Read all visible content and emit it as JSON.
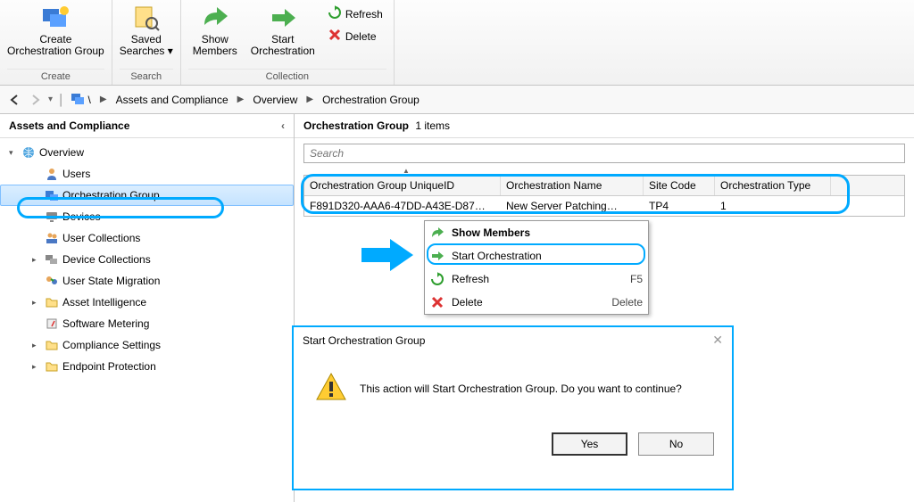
{
  "accent_color": "#00aaff",
  "ribbon": {
    "groups": [
      {
        "title": "Create",
        "buttons": [
          {
            "id": "create-og",
            "label": "Create\nOrchestration Group",
            "icon": "og-create"
          }
        ]
      },
      {
        "title": "Search",
        "buttons": [
          {
            "id": "saved-searches",
            "label": "Saved\nSearches ▾",
            "icon": "search"
          }
        ]
      },
      {
        "title": "Collection",
        "buttons": [
          {
            "id": "show-members",
            "label": "Show\nMembers",
            "icon": "arrow-share"
          },
          {
            "id": "start-orch",
            "label": "Start\nOrchestration",
            "icon": "arrow-right-green"
          }
        ],
        "small": [
          {
            "id": "refresh",
            "label": "Refresh",
            "icon": "refresh"
          },
          {
            "id": "delete",
            "label": "Delete",
            "icon": "delete"
          }
        ]
      }
    ]
  },
  "breadcrumb": {
    "items": [
      "Assets and Compliance",
      "Overview",
      "Orchestration Group"
    ]
  },
  "sidebar": {
    "title": "Assets and Compliance",
    "nodes": [
      {
        "label": "Overview",
        "depth": 0,
        "expander": "▾",
        "icon": "globe"
      },
      {
        "label": "Users",
        "depth": 1,
        "icon": "user"
      },
      {
        "label": "Orchestration Group",
        "depth": 1,
        "icon": "og",
        "selected": true
      },
      {
        "label": "Devices",
        "depth": 1,
        "icon": "device"
      },
      {
        "label": "User Collections",
        "depth": 1,
        "icon": "user-coll"
      },
      {
        "label": "Device Collections",
        "depth": 1,
        "expander": "▸",
        "icon": "dev-coll"
      },
      {
        "label": "User State Migration",
        "depth": 1,
        "icon": "usm"
      },
      {
        "label": "Asset Intelligence",
        "depth": 1,
        "expander": "▸",
        "icon": "folder"
      },
      {
        "label": "Software Metering",
        "depth": 1,
        "icon": "meter"
      },
      {
        "label": "Compliance Settings",
        "depth": 1,
        "expander": "▸",
        "icon": "folder"
      },
      {
        "label": "Endpoint Protection",
        "depth": 1,
        "expander": "▸",
        "icon": "folder"
      }
    ]
  },
  "content": {
    "title_prefix": "Orchestration Group",
    "count_text": "1 items",
    "search_placeholder": "Search",
    "columns": [
      "Orchestration Group UniqueID",
      "Orchestration Name",
      "Site Code",
      "Orchestration Type"
    ],
    "row": {
      "id": "F891D320-AAA6-47DD-A43E-D87…",
      "name": "New Server Patching…",
      "site": "TP4",
      "type": "1"
    }
  },
  "context_menu": {
    "items": [
      {
        "label": "Show Members",
        "icon": "arrow-share",
        "bold": true
      },
      {
        "label": "Start Orchestration",
        "icon": "arrow-right-green",
        "highlight": true
      },
      {
        "label": "Refresh",
        "icon": "refresh",
        "shortcut": "F5"
      },
      {
        "label": "Delete",
        "icon": "delete",
        "shortcut": "Delete"
      }
    ]
  },
  "dialog": {
    "title": "Start Orchestration Group",
    "message": "This action will Start Orchestration Group. Do you want to continue?",
    "yes": "Yes",
    "no": "No"
  }
}
